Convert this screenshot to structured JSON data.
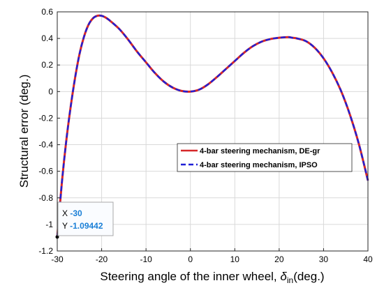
{
  "chart_data": {
    "type": "line",
    "title": "",
    "xlabel": "Steering angle of the inner wheel, ",
    "xlabel_symbol": "δ",
    "xlabel_subscript": "in",
    "xlabel_unit": "(deg.)",
    "ylabel": "Structural error (deg.)",
    "xlim": [
      -30,
      40
    ],
    "ylim": [
      -1.2,
      0.6
    ],
    "xticks": [
      -30,
      -20,
      -10,
      0,
      10,
      20,
      30,
      40
    ],
    "yticks": [
      -1.2,
      -1,
      -0.8,
      -0.6,
      -0.4,
      -0.2,
      0,
      0.2,
      0.4,
      0.6
    ],
    "grid": true,
    "legend_position": "center-right",
    "series": [
      {
        "name": "4-bar steering mechanism, DE-gr",
        "color": "#d62728",
        "style": "solid",
        "x": [
          -30,
          -29,
          -28,
          -27,
          -26,
          -25,
          -24,
          -23,
          -22,
          -21,
          -20,
          -19,
          -18,
          -16,
          -14,
          -12,
          -10,
          -8,
          -6,
          -4,
          -2,
          0,
          2,
          4,
          6,
          8,
          10,
          12,
          14,
          16,
          18,
          20,
          22,
          23,
          24,
          26,
          28,
          30,
          32,
          34,
          36,
          38,
          40
        ],
        "y": [
          -1.09442,
          -0.7,
          -0.38,
          -0.12,
          0.1,
          0.28,
          0.41,
          0.5,
          0.55,
          0.57,
          0.57,
          0.555,
          0.53,
          0.47,
          0.39,
          0.3,
          0.22,
          0.14,
          0.075,
          0.03,
          0.005,
          0.0,
          0.015,
          0.055,
          0.11,
          0.17,
          0.23,
          0.29,
          0.34,
          0.375,
          0.395,
          0.405,
          0.41,
          0.405,
          0.4,
          0.38,
          0.33,
          0.25,
          0.14,
          0.0,
          -0.18,
          -0.4,
          -0.67
        ]
      },
      {
        "name": "4-bar steering mechanism, IPSO",
        "color": "#1f1fd6",
        "style": "dashed",
        "x": [
          -30,
          -29,
          -28,
          -27,
          -26,
          -25,
          -24,
          -23,
          -22,
          -21,
          -20,
          -19,
          -18,
          -16,
          -14,
          -12,
          -10,
          -8,
          -6,
          -4,
          -2,
          0,
          2,
          4,
          6,
          8,
          10,
          12,
          14,
          16,
          18,
          20,
          22,
          23,
          24,
          26,
          28,
          30,
          32,
          34,
          36,
          38,
          40
        ],
        "y": [
          -1.09442,
          -0.7,
          -0.38,
          -0.12,
          0.1,
          0.28,
          0.41,
          0.5,
          0.55,
          0.57,
          0.57,
          0.555,
          0.53,
          0.47,
          0.39,
          0.3,
          0.22,
          0.14,
          0.075,
          0.03,
          0.005,
          0.0,
          0.015,
          0.055,
          0.11,
          0.17,
          0.23,
          0.29,
          0.34,
          0.375,
          0.395,
          0.405,
          0.41,
          0.405,
          0.4,
          0.38,
          0.33,
          0.25,
          0.14,
          0.0,
          -0.18,
          -0.4,
          -0.67
        ]
      }
    ],
    "datatip": {
      "x_label": "X",
      "x_value": "-30",
      "y_label": "Y",
      "y_value": "-1.09442",
      "x": -30,
      "y": -1.09442
    }
  }
}
